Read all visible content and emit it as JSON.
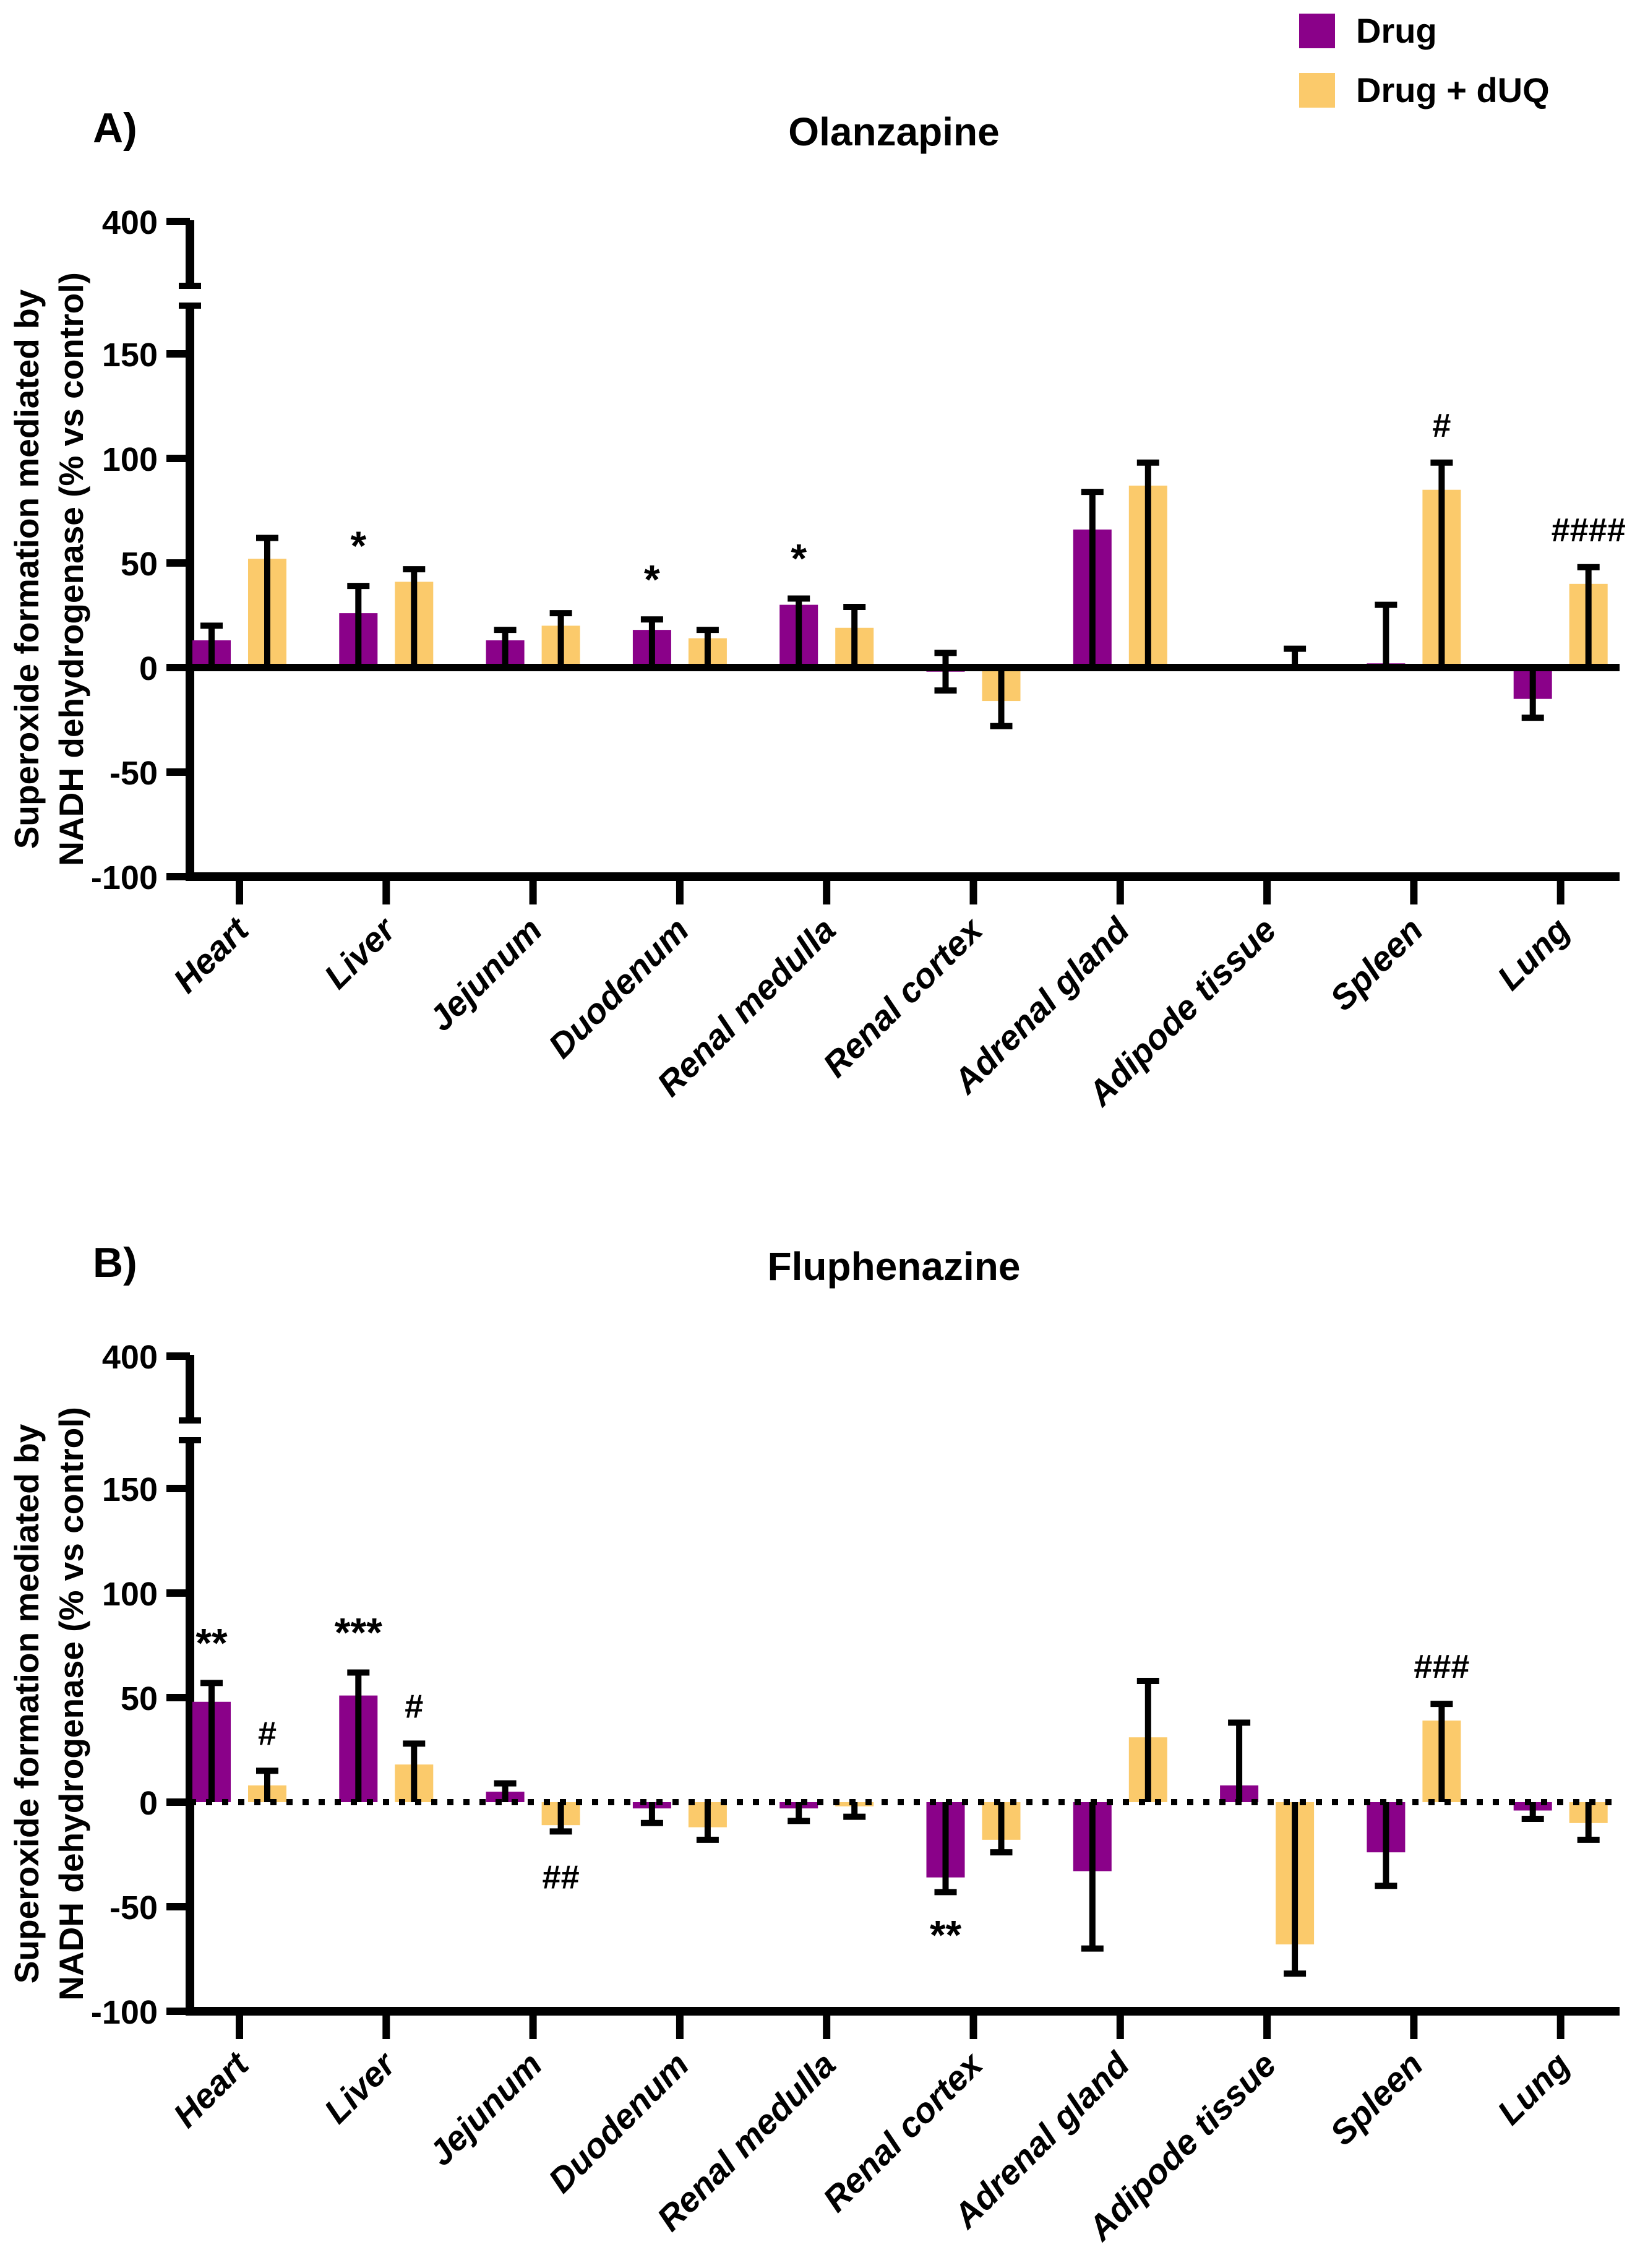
{
  "figure": {
    "background": "#ffffff",
    "legend": {
      "items": [
        {
          "label": "Drug",
          "color": "#8A0189"
        },
        {
          "label": "Drug + dUQ",
          "color": "#FBCA6B"
        }
      ]
    },
    "ylabel_line1": "Superoxide  formation mediated by",
    "ylabel_line2": "NADH dehydrogenase (% vs control)"
  },
  "chart_data": [
    {
      "type": "bar",
      "panel_label": "A)",
      "title": "Olanzapine",
      "baseline_style": "solid",
      "ylabel": "Superoxide formation mediated by NADH dehydrogenase (% vs control)",
      "ylim": [
        -100,
        175
      ],
      "broken_axis_top_tick": "400",
      "yticks_main": [
        150,
        100,
        50,
        0,
        -50,
        -100
      ],
      "grid": false,
      "legend_position": "top-right",
      "categories": [
        "Heart",
        "Liver",
        "Jejunum",
        "Duodenum",
        "Renal medulla",
        "Renal cortex",
        "Adrenal gland",
        "Adipode tissue",
        "Spleen",
        "Lung"
      ],
      "series": [
        {
          "name": "Drug",
          "color": "#8A0189",
          "values": [
            13,
            26,
            13,
            18,
            30,
            -2,
            66,
            0,
            2,
            -15
          ],
          "err_up": [
            7,
            13,
            5,
            5,
            3,
            9,
            18,
            0,
            28,
            0
          ],
          "err_down": [
            0,
            0,
            0,
            0,
            0,
            9,
            0,
            0,
            0,
            9
          ]
        },
        {
          "name": "Drug + dUQ",
          "color": "#FBCA6B",
          "values": [
            52,
            41,
            20,
            14,
            19,
            -16,
            87,
            -1,
            85,
            40
          ],
          "err_up": [
            10,
            6,
            6,
            4,
            10,
            0,
            11,
            10,
            13,
            8
          ],
          "err_down": [
            0,
            0,
            0,
            0,
            0,
            12,
            0,
            0,
            0,
            0
          ]
        }
      ],
      "annotations": [
        {
          "cat": 1,
          "series": 0,
          "text": "*",
          "pos": "above"
        },
        {
          "cat": 3,
          "series": 0,
          "text": "*",
          "pos": "above"
        },
        {
          "cat": 4,
          "series": 0,
          "text": "*",
          "pos": "above"
        },
        {
          "cat": 8,
          "series": 1,
          "text": "#",
          "pos": "above"
        },
        {
          "cat": 9,
          "series": 1,
          "text": "####",
          "pos": "above"
        }
      ]
    },
    {
      "type": "bar",
      "panel_label": "B)",
      "title": "Fluphenazine",
      "baseline_style": "dotted",
      "ylabel": "Superoxide formation mediated by NADH dehydrogenase (% vs control)",
      "ylim": [
        -100,
        175
      ],
      "broken_axis_top_tick": "400",
      "yticks_main": [
        150,
        100,
        50,
        0,
        -50,
        -100
      ],
      "grid": false,
      "legend_position": "none",
      "categories": [
        "Heart",
        "Liver",
        "Jejunum",
        "Duodenum",
        "Renal medulla",
        "Renal cortex",
        "Adrenal gland",
        "Adipode tissue",
        "Spleen",
        "Lung"
      ],
      "series": [
        {
          "name": "Drug",
          "color": "#8A0189",
          "values": [
            48,
            51,
            5,
            -3,
            -3,
            -36,
            -33,
            8,
            -24,
            -4
          ],
          "err_up": [
            9,
            11,
            4,
            0,
            0,
            0,
            0,
            30,
            0,
            0
          ],
          "err_down": [
            0,
            0,
            0,
            7,
            6,
            7,
            37,
            0,
            16,
            4
          ]
        },
        {
          "name": "Drug + dUQ",
          "color": "#FBCA6B",
          "values": [
            8,
            18,
            -11,
            -12,
            -2,
            -18,
            31,
            -68,
            39,
            -10
          ],
          "err_up": [
            7,
            10,
            0,
            0,
            0,
            0,
            27,
            0,
            8,
            0
          ],
          "err_down": [
            0,
            0,
            3,
            6,
            5,
            6,
            0,
            14,
            0,
            8
          ]
        }
      ],
      "annotations": [
        {
          "cat": 0,
          "series": 0,
          "text": "**",
          "pos": "above"
        },
        {
          "cat": 0,
          "series": 1,
          "text": "#",
          "pos": "above"
        },
        {
          "cat": 1,
          "series": 0,
          "text": "***",
          "pos": "above"
        },
        {
          "cat": 1,
          "series": 1,
          "text": "#",
          "pos": "above"
        },
        {
          "cat": 2,
          "series": 1,
          "text": "##",
          "pos": "below"
        },
        {
          "cat": 5,
          "series": 0,
          "text": "**",
          "pos": "below"
        },
        {
          "cat": 8,
          "series": 1,
          "text": "###",
          "pos": "above"
        }
      ]
    }
  ]
}
